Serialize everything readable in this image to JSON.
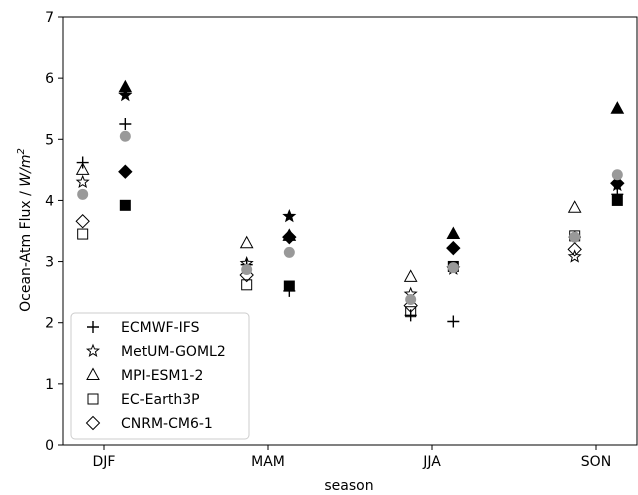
{
  "chart_data": {
    "type": "scatter",
    "xlabel": "season",
    "ylabel_prefix": "Ocean-Atm Flux / ",
    "ylabel_unit_base": "W/m",
    "ylabel_unit_exp": "2",
    "categories": [
      "DJF",
      "MAM",
      "JJA",
      "SON"
    ],
    "ylim": [
      0,
      7
    ],
    "yticks": [
      "0",
      "1",
      "2",
      "3",
      "4",
      "5",
      "6",
      "7"
    ],
    "grid": false,
    "legend_position": "lower-left",
    "group_offsets": [
      -0.13,
      0.13
    ],
    "series": [
      {
        "name": "ECMWF-IFS",
        "marker": "plus",
        "color": "#000000",
        "legend": true,
        "values": [
          [
            4.62,
            5.25
          ],
          [
            2.95,
            2.52
          ],
          [
            2.12,
            2.02
          ],
          [
            3.4,
            4.1
          ]
        ]
      },
      {
        "name": "MetUM-GOML2",
        "marker": "star",
        "color": "#000000",
        "legend": true,
        "values": [
          [
            4.3,
            5.72
          ],
          [
            2.97,
            3.74
          ],
          [
            2.47,
            2.88
          ],
          [
            3.08,
            4.25
          ]
        ]
      },
      {
        "name": "MPI-ESM1-2",
        "marker": "triangle",
        "color": "#000000",
        "legend": true,
        "values": [
          [
            4.5,
            5.85
          ],
          [
            3.3,
            3.42
          ],
          [
            2.75,
            3.45
          ],
          [
            3.88,
            5.5
          ]
        ]
      },
      {
        "name": "EC-Earth3P",
        "marker": "square",
        "color": "#000000",
        "legend": true,
        "values": [
          [
            3.45,
            3.92
          ],
          [
            2.62,
            2.6
          ],
          [
            2.18,
            2.92
          ],
          [
            3.42,
            4.0
          ]
        ]
      },
      {
        "name": "CNRM-CM6-1",
        "marker": "diamond",
        "color": "#000000",
        "legend": true,
        "values": [
          [
            3.66,
            4.47
          ],
          [
            2.78,
            3.4
          ],
          [
            2.28,
            3.22
          ],
          [
            3.2,
            4.28
          ]
        ]
      },
      {
        "name": "",
        "marker": "circle",
        "color": "#999999",
        "legend": false,
        "values": [
          [
            4.1,
            5.05
          ],
          [
            2.87,
            3.15
          ],
          [
            2.38,
            2.9
          ],
          [
            3.4,
            4.42
          ]
        ]
      }
    ]
  }
}
